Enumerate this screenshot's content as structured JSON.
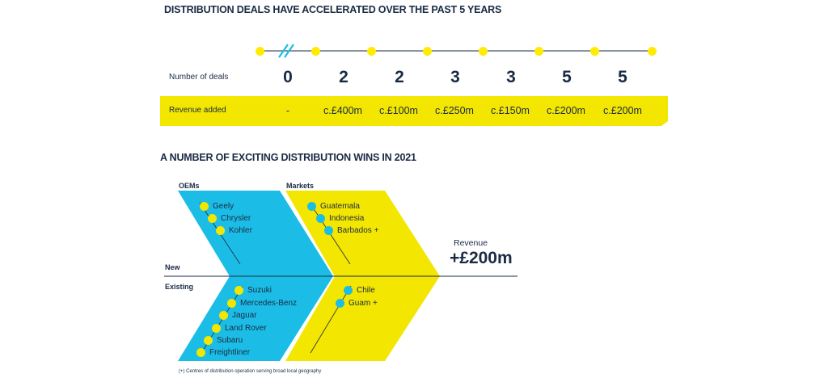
{
  "title_top": "DISTRIBUTION DEALS HAVE ACCELERATED OVER THE PAST 5 YEARS",
  "timeline": {
    "deals_label": "Number of deals",
    "revenue_label": "Revenue added",
    "deals": [
      "0",
      "2",
      "2",
      "3",
      "3",
      "5",
      "5"
    ],
    "revenue": [
      "-",
      "c.£400m",
      "c.£100m",
      "c.£250m",
      "c.£150m",
      "c.£200m",
      "c.£200m"
    ]
  },
  "title_bottom": "A NUMBER OF EXCITING DISTRIBUTION WINS IN 2021",
  "wins": {
    "oems_label": "OEMs",
    "markets_label": "Markets",
    "new_label": "New",
    "existing_label": "Existing",
    "oems_new": [
      "Geely",
      "Chrysler",
      "Kohler"
    ],
    "oems_existing": [
      "Suzuki",
      "Mercedes-Benz",
      "Jaguar",
      "Land Rover",
      "Subaru",
      "Freightliner"
    ],
    "markets_new": [
      "Guatemala",
      "Indonesia",
      "Barbados +"
    ],
    "markets_existing": [
      "Chile",
      "Guam +"
    ],
    "revenue_label": "Revenue",
    "revenue_value": "+£200m",
    "footnote": "(+) Centres of distribution operation serving broad local geography"
  },
  "colors": {
    "navy": "#1a2b44",
    "yellow": "#f3e600",
    "blue": "#1bbde6",
    "dot_yellow": "#ffec00"
  }
}
